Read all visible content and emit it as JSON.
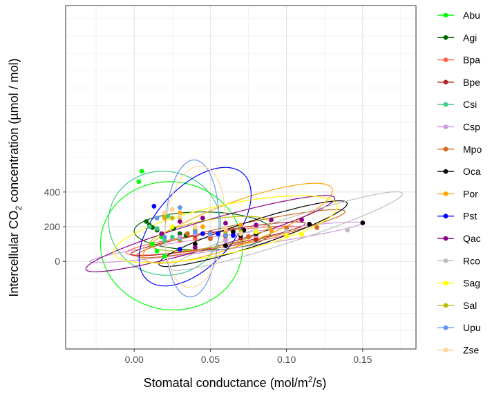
{
  "chart_data": {
    "type": "scatter",
    "x_label": {
      "pre": "Stomatal conductance  (mol",
      "slash1": "/",
      "m": "m",
      "sup": "2",
      "slash2": "/",
      "s": "s",
      "close": ")"
    },
    "y_label": {
      "pre": "Intercellular CO",
      "sub": "2",
      "post": " concentration (µmol / mol)"
    },
    "xlim": [
      -0.045,
      0.185
    ],
    "ylim": [
      -505,
      1475
    ],
    "x_ticks": [
      0.0,
      0.05,
      0.1,
      0.15
    ],
    "x_tick_labels": [
      "0.00",
      "0.05",
      "0.10",
      "0.15"
    ],
    "y_ticks": [
      0,
      200,
      400
    ],
    "y_tick_labels": [
      "0",
      "200",
      "400"
    ],
    "grid": true,
    "legend_position": "right",
    "series": [
      {
        "name": "Abu",
        "color": "#00ff00",
        "points": [
          [
            0.005,
            520
          ],
          [
            0.003,
            460
          ],
          [
            0.015,
            60
          ],
          [
            0.02,
            30
          ],
          [
            0.012,
            100
          ],
          [
            0.018,
            140
          ]
        ],
        "ellipse": {
          "cx": 0.0245,
          "cy": 90,
          "rx": 0.042,
          "ry": 410,
          "angle": 82
        }
      },
      {
        "name": "Agi",
        "color": "#006400",
        "points": [
          [
            0.008,
            230
          ],
          [
            0.01,
            210
          ],
          [
            0.012,
            195
          ],
          [
            0.015,
            180
          ],
          [
            0.026,
            190
          ],
          [
            0.03,
            160
          ],
          [
            0.034,
            150
          ]
        ],
        "ellipse": {
          "cx": 0.045,
          "cy": 175,
          "rx": 0.045,
          "ry": 110,
          "angle": 0
        }
      },
      {
        "name": "Bpa",
        "color": "#ff6347",
        "points": [
          [
            0.03,
            120
          ],
          [
            0.04,
            130
          ],
          [
            0.05,
            140
          ],
          [
            0.06,
            150
          ],
          [
            0.07,
            160
          ],
          [
            0.08,
            140
          ],
          [
            0.075,
            145
          ]
        ],
        "ellipse": {
          "cx": 0.052,
          "cy": 120,
          "rx": 0.058,
          "ry": 45,
          "angle": 8
        }
      },
      {
        "name": "Bpe",
        "color": "#b22222",
        "points": [
          [
            0.04,
            150
          ],
          [
            0.05,
            165
          ],
          [
            0.06,
            145
          ],
          [
            0.07,
            135
          ],
          [
            0.065,
            150
          ],
          [
            0.08,
            125
          ]
        ],
        "ellipse": {
          "cx": 0.055,
          "cy": 130,
          "rx": 0.058,
          "ry": 42,
          "angle": 10
        }
      },
      {
        "name": "Csi",
        "color": "#3ccc86",
        "points": [
          [
            0.01,
            200
          ],
          [
            0.015,
            190
          ],
          [
            0.02,
            120
          ],
          [
            0.025,
            140
          ],
          [
            0.03,
            130
          ],
          [
            0.022,
            260
          ]
        ],
        "ellipse": {
          "cx": 0.02,
          "cy": 220,
          "rx": 0.034,
          "ry": 325,
          "angle": 78
        }
      },
      {
        "name": "Csp",
        "color": "#cc99dd",
        "points": [
          [
            0.03,
            140
          ],
          [
            0.04,
            160
          ],
          [
            0.05,
            150
          ],
          [
            0.06,
            120
          ],
          [
            0.07,
            170
          ],
          [
            0.08,
            150
          ]
        ],
        "ellipse": {
          "cx": 0.06,
          "cy": 110,
          "rx": 0.09,
          "ry": 40,
          "angle": 8
        }
      },
      {
        "name": "Mpo",
        "color": "#d2691e",
        "points": [
          [
            0.035,
            160
          ],
          [
            0.05,
            130
          ],
          [
            0.065,
            180
          ],
          [
            0.075,
            140
          ],
          [
            0.1,
            190
          ],
          [
            0.12,
            195
          ],
          [
            0.09,
            180
          ]
        ],
        "ellipse": {
          "cx": 0.07,
          "cy": 160,
          "rx": 0.07,
          "ry": 55,
          "angle": 12
        }
      },
      {
        "name": "Oca",
        "color": "#000000",
        "points": [
          [
            0.04,
            100
          ],
          [
            0.06,
            90
          ],
          [
            0.065,
            170
          ],
          [
            0.07,
            150
          ],
          [
            0.072,
            180
          ],
          [
            0.08,
            160
          ],
          [
            0.115,
            215
          ],
          [
            0.15,
            222
          ]
        ],
        "ellipse": {
          "cx": 0.078,
          "cy": 160,
          "rx": 0.065,
          "ry": 72,
          "angle": 18
        }
      },
      {
        "name": "Por",
        "color": "#ffa500",
        "points": [
          [
            0.02,
            250
          ],
          [
            0.025,
            300
          ],
          [
            0.03,
            280
          ],
          [
            0.045,
            200
          ],
          [
            0.07,
            210
          ],
          [
            0.09,
            180
          ],
          [
            0.1,
            160
          ]
        ],
        "ellipse": {
          "cx": 0.068,
          "cy": 220,
          "rx": 0.066,
          "ry": 125,
          "angle": 20
        }
      },
      {
        "name": "Pst",
        "color": "#0000ff",
        "points": [
          [
            0.013,
            318
          ],
          [
            0.02,
            260
          ],
          [
            0.03,
            70
          ],
          [
            0.045,
            160
          ],
          [
            0.055,
            160
          ],
          [
            0.065,
            150
          ],
          [
            0.07,
            160
          ]
        ],
        "ellipse": {
          "cx": 0.04,
          "cy": 200,
          "rx": 0.047,
          "ry": 225,
          "angle": 48
        }
      },
      {
        "name": "Qac",
        "color": "#8b008b",
        "points": [
          [
            0.018,
            160
          ],
          [
            0.03,
            230
          ],
          [
            0.045,
            250
          ],
          [
            0.06,
            220
          ],
          [
            0.08,
            210
          ],
          [
            0.09,
            240
          ],
          [
            0.11,
            240
          ],
          [
            0.04,
            80
          ]
        ],
        "ellipse": {
          "cx": 0.05,
          "cy": 160,
          "rx": 0.085,
          "ry": 80,
          "angle": 16
        }
      },
      {
        "name": "Rco",
        "color": "#bebebe",
        "points": [
          [
            0.07,
            160
          ],
          [
            0.08,
            170
          ],
          [
            0.1,
            175
          ],
          [
            0.14,
            180
          ]
        ],
        "ellipse": {
          "cx": 0.1,
          "cy": 175,
          "rx": 0.08,
          "ry": 68,
          "angle": 18
        }
      },
      {
        "name": "Sag",
        "color": "#ffff00",
        "points": [
          [
            0.025,
            200
          ],
          [
            0.04,
            180
          ],
          [
            0.06,
            160
          ],
          [
            0.08,
            170
          ],
          [
            0.1,
            150
          ],
          [
            0.11,
            155
          ]
        ],
        "ellipse": {
          "cx": 0.06,
          "cy": 185,
          "rx": 0.075,
          "ry": 140,
          "angle": 12
        }
      },
      {
        "name": "Sal",
        "color": "#bbbb00",
        "points": [
          [
            0.02,
            260
          ],
          [
            0.025,
            250
          ],
          [
            0.03,
            255
          ],
          [
            0.04,
            180
          ],
          [
            0.06,
            160
          ],
          [
            0.07,
            170
          ]
        ],
        "ellipse": {
          "cx": 0.05,
          "cy": 160,
          "rx": 0.04,
          "ry": 80,
          "angle": 10
        }
      },
      {
        "name": "Upu",
        "color": "#6495ed",
        "points": [
          [
            0.015,
            250
          ],
          [
            0.02,
            140
          ],
          [
            0.03,
            310
          ],
          [
            0.04,
            170
          ],
          [
            0.05,
            160
          ],
          [
            0.06,
            150
          ]
        ],
        "ellipse": {
          "cx": 0.038,
          "cy": 190,
          "rx": 0.045,
          "ry": 155,
          "angle": 88
        }
      },
      {
        "name": "Zse",
        "color": "#ffd39b",
        "points": [
          [
            0.02,
            280
          ],
          [
            0.025,
            300
          ],
          [
            0.03,
            260
          ],
          [
            0.04,
            200
          ],
          [
            0.06,
            190
          ],
          [
            0.07,
            160
          ]
        ],
        "ellipse": {
          "cx": 0.04,
          "cy": 200,
          "rx": 0.04,
          "ry": 170,
          "angle": 84
        }
      }
    ]
  }
}
